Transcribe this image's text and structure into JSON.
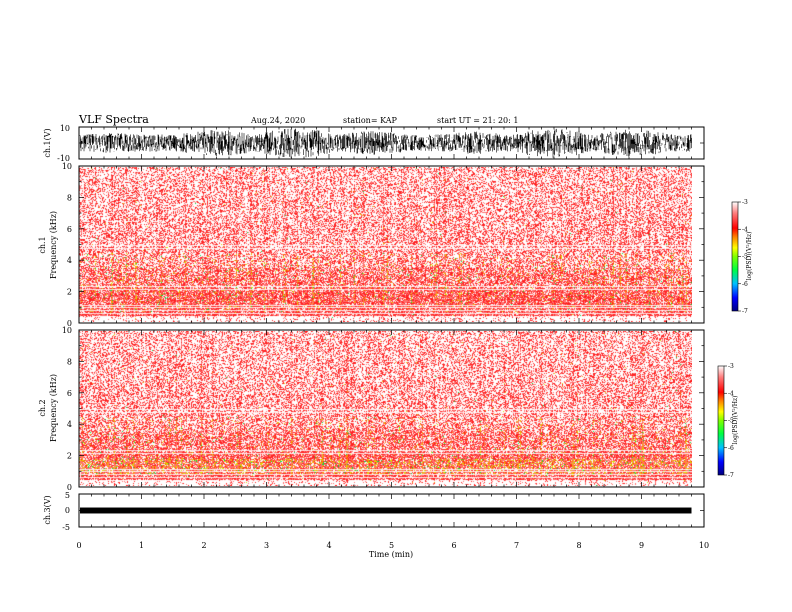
{
  "header": {
    "title": "VLF Spectra",
    "date": "Aug.24, 2020",
    "station": "station= KAP",
    "start": "start  UT  =   21: 20: 1"
  },
  "chart_data": [
    {
      "id": "ch1-waveform",
      "type": "line",
      "ylabel": "ch.1(V)",
      "ylim": [
        -10,
        10
      ],
      "yticks": [
        "10",
        "-10"
      ],
      "xlim": [
        0,
        10
      ],
      "data_extent_min": 9.8
    },
    {
      "id": "ch1-spectrogram",
      "type": "heatmap",
      "ylabel": "ch.1\nFrequency (kHz)",
      "ylabel_lines": [
        "ch.1",
        "Frequency (kHz)"
      ],
      "ylim": [
        0,
        10
      ],
      "yticks": [
        "0",
        "2",
        "4",
        "6",
        "8",
        "10"
      ],
      "xlim": [
        0,
        10
      ],
      "colorbar": {
        "label": "log(PSD)(V²/Hz)",
        "ticks": [
          "-3",
          "-4",
          "-5",
          "-6",
          "-7"
        ],
        "range": [
          -7,
          -3
        ]
      }
    },
    {
      "id": "ch2-spectrogram",
      "type": "heatmap",
      "ylabel_lines": [
        "ch.2",
        "Frequency (kHz)"
      ],
      "ylim": [
        0,
        10
      ],
      "yticks": [
        "0",
        "2",
        "4",
        "6",
        "8",
        "10"
      ],
      "xlim": [
        0,
        10
      ],
      "colorbar": {
        "label": "log(PSD)(V²/Hz)",
        "ticks": [
          "-3",
          "-4",
          "-5",
          "-6",
          "-7"
        ],
        "range": [
          -7,
          -3
        ]
      }
    },
    {
      "id": "ch3-waveform",
      "type": "line",
      "ylabel": "ch.3(V)",
      "ylim": [
        -5,
        5
      ],
      "yticks": [
        "5",
        "0",
        "-5"
      ],
      "xlim": [
        0,
        10
      ],
      "xticks": [
        "0",
        "1",
        "2",
        "3",
        "4",
        "5",
        "6",
        "7",
        "8",
        "9",
        "10"
      ],
      "xlabel": "Time (min)"
    }
  ],
  "colors": {
    "spectrogram_scale": [
      "#000080",
      "#0000ff",
      "#00c0ff",
      "#00ff40",
      "#80ff00",
      "#ffff00",
      "#ff8000",
      "#ff0000",
      "#ff8080",
      "#ffffff"
    ]
  }
}
